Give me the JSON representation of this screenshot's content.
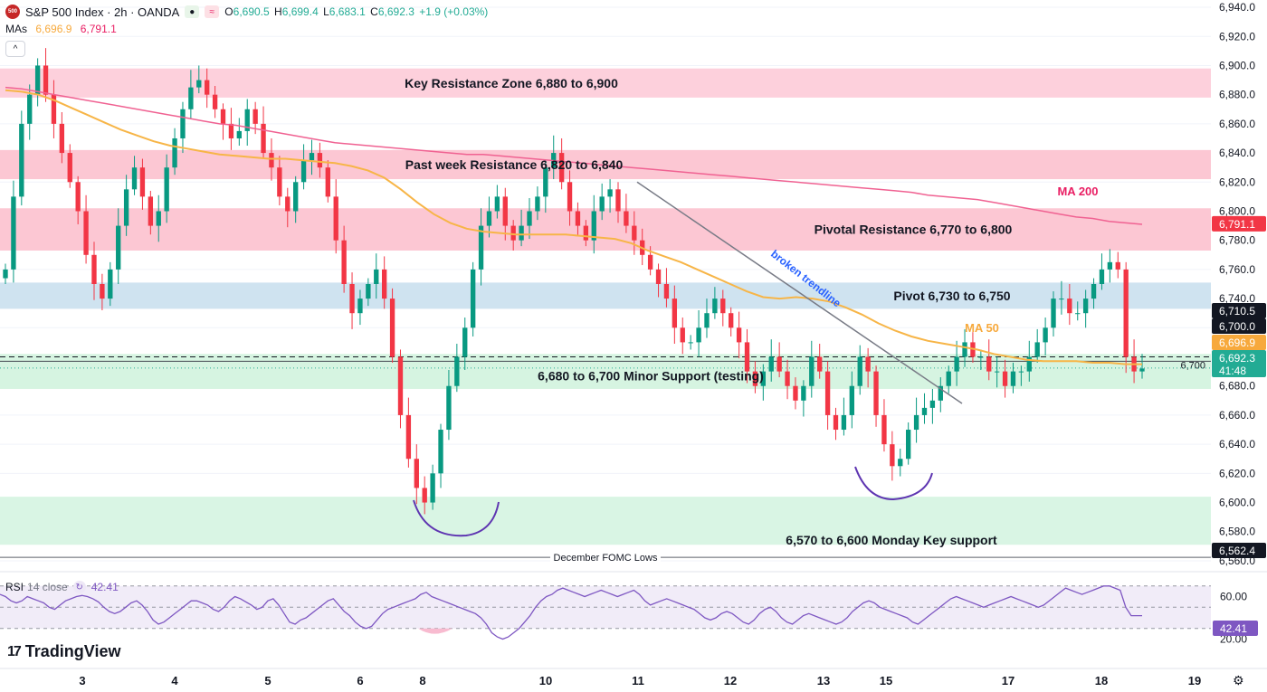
{
  "header": {
    "symbol_title": "S&P 500 Index · 2h · OANDA",
    "logo_text": "500",
    "open_label": "O",
    "open_value": "6,690.5",
    "high_label": "H",
    "high_value": "6,699.4",
    "low_label": "L",
    "low_value": "6,683.1",
    "close_label": "C",
    "close_value": "6,692.3",
    "change_value": "+1.9 (+0.03%)",
    "ma_label": "MAs",
    "ma50_value": "6,696.9",
    "ma200_value": "6,791.1",
    "collapse_glyph": "^"
  },
  "rsi": {
    "label": "RSI",
    "params": "14 close",
    "value": "42.41",
    "axis_ticks": [
      "60.00",
      "20.00"
    ],
    "series": [
      62,
      60,
      56,
      54,
      56,
      60,
      58,
      56,
      54,
      50,
      48,
      52,
      56,
      58,
      60,
      61,
      60,
      58,
      55,
      50,
      46,
      44,
      46,
      50,
      54,
      56,
      52,
      46,
      38,
      34,
      36,
      40,
      44,
      48,
      52,
      56,
      56,
      54,
      52,
      48,
      46,
      50,
      56,
      60,
      58,
      55,
      52,
      48,
      50,
      56,
      58,
      52,
      44,
      36,
      34,
      38,
      40,
      44,
      48,
      52,
      56,
      58,
      52,
      46,
      42,
      36,
      32,
      30,
      32,
      38,
      44,
      48,
      50,
      52,
      54,
      56,
      58,
      62,
      64,
      60,
      58,
      56,
      54,
      52,
      50,
      48,
      46,
      44,
      40,
      34,
      26,
      22,
      20,
      22,
      26,
      30,
      36,
      42,
      50,
      56,
      60,
      62,
      66,
      68,
      66,
      64,
      62,
      60,
      62,
      64,
      66,
      64,
      62,
      60,
      62,
      64,
      66,
      62,
      56,
      52,
      54,
      56,
      58,
      56,
      54,
      52,
      50,
      48,
      44,
      40,
      38,
      40,
      44,
      46,
      44,
      40,
      36,
      34,
      38,
      44,
      48,
      50,
      46,
      40,
      36,
      34,
      38,
      42,
      44,
      42,
      40,
      38,
      36,
      34,
      36,
      40,
      46,
      50,
      54,
      56,
      54,
      50,
      48,
      46,
      44,
      42,
      40,
      36,
      34,
      38,
      42,
      46,
      50,
      54,
      58,
      60,
      58,
      56,
      54,
      52,
      50,
      52,
      54,
      56,
      58,
      60,
      58,
      56,
      54,
      52,
      50,
      52,
      56,
      60,
      64,
      68,
      66,
      64,
      62,
      64,
      66,
      68,
      70,
      70,
      68,
      66,
      50,
      42,
      42,
      42
    ]
  },
  "branding": {
    "tradingview": "TradingView",
    "mark": "17"
  },
  "chart_data": {
    "type": "candlestick",
    "title": "S&P 500 Index · 2h · OANDA",
    "xlabel": "",
    "ylabel": "",
    "ylim": [
      6555,
      6945
    ],
    "y_ticks": [
      "6,940.0",
      "6,920.0",
      "6,900.0",
      "6,880.0",
      "6,860.0",
      "6,840.0",
      "6,820.0",
      "6,800.0",
      "6,780.0",
      "6,760.0",
      "6,740.0",
      "6,720.0",
      "6,700.0",
      "6,680.0",
      "6,660.0",
      "6,640.0",
      "6,620.0",
      "6,600.0",
      "6,580.0",
      "6,560.0"
    ],
    "x_ticks": [
      "3",
      "4",
      "5",
      "6",
      "8",
      "10",
      "11",
      "12",
      "13",
      "15",
      "17",
      "18",
      "19"
    ],
    "zones": [
      {
        "name": "Key Resistance Zone 6,880 to 6,900",
        "low": 6878,
        "high": 6898,
        "color": "#fdd0dc"
      },
      {
        "name": "Past week Resistance 6,820 to 6,840",
        "low": 6822,
        "high": 6842,
        "color": "#fcc7d3"
      },
      {
        "name": "Pivotal Resistance 6,770 to 6,800",
        "low": 6773,
        "high": 6802,
        "color": "#fcc7d3"
      },
      {
        "name": "Pivot  6,730 to 6,750",
        "low": 6733,
        "high": 6751,
        "color": "#cfe3f0"
      },
      {
        "name": "6,680 to 6,700 Minor Support (testing)",
        "low": 6678,
        "high": 6702,
        "color": "#d6f4e1"
      },
      {
        "name": "6,570 to 6,600 Monday Key support",
        "low": 6571,
        "high": 6604,
        "color": "#d9f5e4"
      }
    ],
    "annotations": {
      "fomc_label": "December FOMC Lows",
      "fomc_level": 6562.4,
      "trendline_label": "broken trendline",
      "ma50_label": "MA 50",
      "ma200_label": "MA 200",
      "level_6700_label": "6,700",
      "level_6700": 6700
    },
    "price_labels": [
      {
        "text": "6,791.1",
        "value": 6791.1,
        "color": "#f23645"
      },
      {
        "text": "6,710.5",
        "value": 6710.5,
        "color": "#131722"
      },
      {
        "text": "6,700.0",
        "value": 6700.0,
        "color": "#131722"
      },
      {
        "text": "6,696.9",
        "value": 6696.9,
        "color": "#f7a93c"
      },
      {
        "text": "6,692.3",
        "value": 6692.3,
        "color": "#22ab94"
      },
      {
        "text": "6,562.4",
        "value": 6562.4,
        "color": "#131722"
      }
    ],
    "countdown": "41:48",
    "last_price": 6692.3,
    "ma50": [
      6883,
      6882,
      6880,
      6876,
      6871,
      6866,
      6861,
      6856,
      6852,
      6848,
      6845,
      6843,
      6841,
      6839,
      6838,
      6837,
      6836,
      6836,
      6835,
      6834,
      6833,
      6831,
      6828,
      6823,
      6815,
      6806,
      6798,
      6792,
      6788,
      6786,
      6785,
      6784,
      6784,
      6784,
      6784,
      6783,
      6782,
      6781,
      6778,
      6773,
      6769,
      6765,
      6760,
      6755,
      6750,
      6745,
      6741,
      6740,
      6741,
      6740,
      6738,
      6734,
      6729,
      6723,
      6718,
      6714,
      6711,
      6709,
      6707,
      6705,
      6702,
      6700,
      6698,
      6697,
      6697,
      6697,
      6696,
      6696,
      6695,
      6695
    ],
    "ma200": [
      6885,
      6884,
      6882,
      6880,
      6878,
      6876,
      6874,
      6872,
      6870,
      6868,
      6866,
      6864,
      6862,
      6860,
      6859,
      6857,
      6855,
      6853,
      6851,
      6849,
      6847,
      6846,
      6845,
      6844,
      6843,
      6842,
      6841,
      6840,
      6839,
      6839,
      6838,
      6837,
      6836,
      6835,
      6834,
      6833,
      6832,
      6831,
      6830,
      6829,
      6828,
      6827,
      6826,
      6825,
      6824,
      6823,
      6822,
      6821,
      6820,
      6819,
      6818,
      6817,
      6816,
      6815,
      6814,
      6813,
      6811,
      6810,
      6809,
      6808,
      6806,
      6804,
      6802,
      6800,
      6798,
      6796,
      6795,
      6793,
      6792,
      6791
    ]
  }
}
